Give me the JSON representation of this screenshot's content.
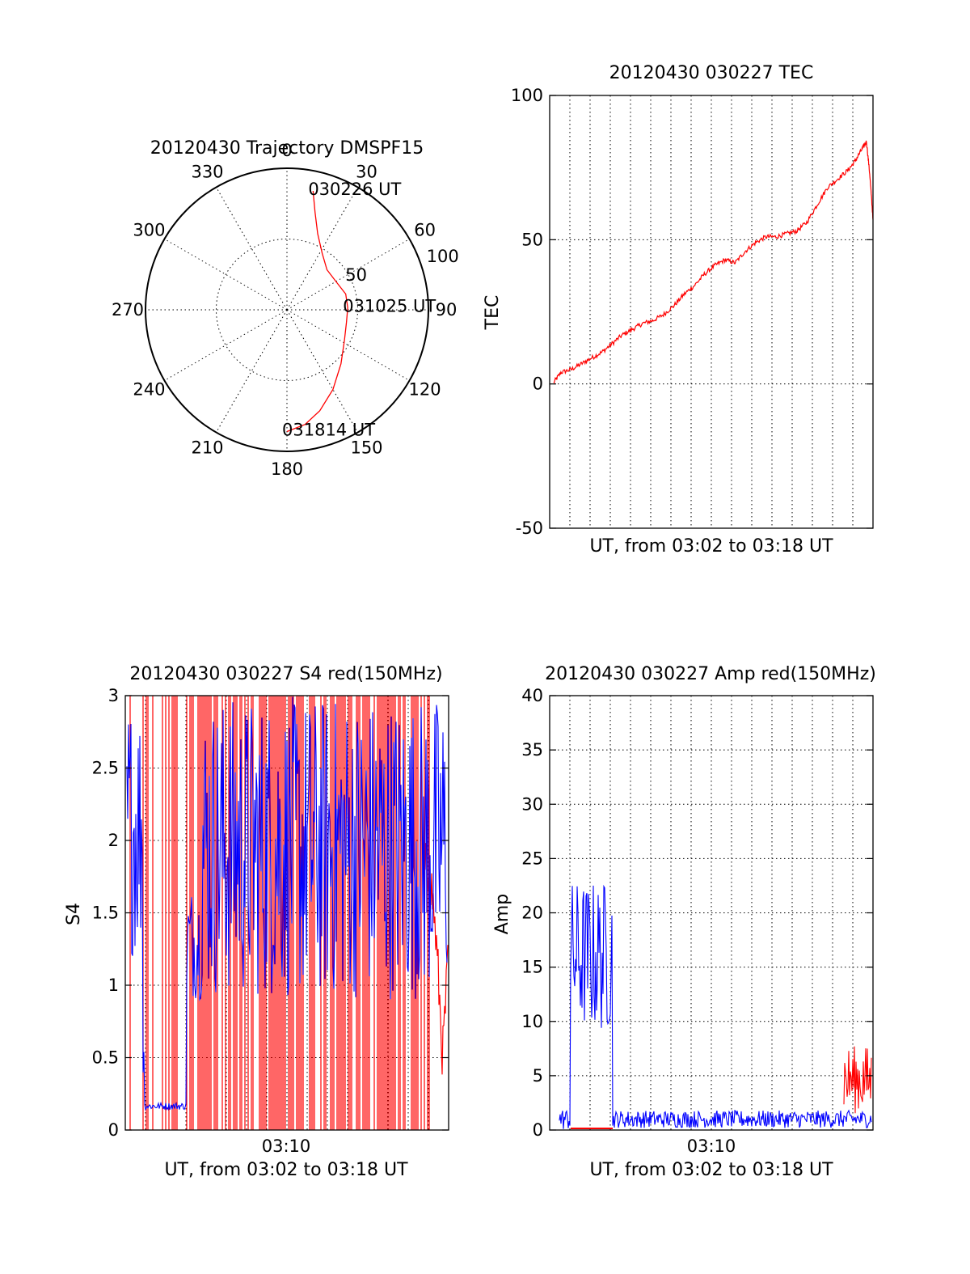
{
  "colors": {
    "red": "#ff0000",
    "blue": "#0000ff",
    "axis": "#000000"
  },
  "chart_data": [
    {
      "id": "trajectory",
      "type": "polar",
      "title": "20120430 Trajectory DMSPF15",
      "azimuth_labels": [
        "0",
        "30",
        "60",
        "90",
        "120",
        "150",
        "180",
        "210",
        "240",
        "270",
        "300",
        "330"
      ],
      "radius_labels": [
        "50",
        "100"
      ],
      "rlim": [
        0,
        100
      ],
      "grid": true,
      "series": [
        {
          "color": "#ff0000",
          "points": [
            {
              "az": 12.4,
              "r": 86
            },
            {
              "az": 16,
              "r": 72
            },
            {
              "az": 22,
              "r": 58
            },
            {
              "az": 32,
              "r": 47
            },
            {
              "az": 45,
              "r": 40
            },
            {
              "az": 60,
              "r": 40
            },
            {
              "az": 75,
              "r": 43
            },
            {
              "az": 88,
              "r": 43
            },
            {
              "az": 102,
              "r": 43
            },
            {
              "az": 118,
              "r": 46
            },
            {
              "az": 135,
              "r": 54
            },
            {
              "az": 150,
              "r": 65
            },
            {
              "az": 162,
              "r": 75
            },
            {
              "az": 171,
              "r": 82
            },
            {
              "az": 180,
              "r": 86
            }
          ]
        }
      ],
      "annotations": [
        {
          "text": "030226 UT",
          "az": 12.4,
          "r": 86
        },
        {
          "text": "031025 UT",
          "az": 88,
          "r": 43
        },
        {
          "text": "031814 UT",
          "az": 180,
          "r": 86
        }
      ]
    },
    {
      "id": "tec",
      "type": "line",
      "title": "20120430 030227 TEC",
      "xlabel": "UT, from 03:02 to 03:18 UT",
      "ylabel": "TEC",
      "xlim": [
        "03:02:27",
        "03:18:14"
      ],
      "ylim": [
        -50,
        100
      ],
      "yticks": [
        "100",
        "50",
        "0",
        "-50"
      ],
      "xtick_labels": [],
      "grid": true,
      "series": [
        {
          "color": "#ff0000",
          "x": [
            "03:02:39",
            "03:03:00",
            "03:03:30",
            "03:04:00",
            "03:04:30",
            "03:05:00",
            "03:05:30",
            "03:06:00",
            "03:06:30",
            "03:07:00",
            "03:07:30",
            "03:08:00",
            "03:08:30",
            "03:09:00",
            "03:09:30",
            "03:10:00",
            "03:10:30",
            "03:11:00",
            "03:11:30",
            "03:12:00",
            "03:12:30",
            "03:13:00",
            "03:13:30",
            "03:14:00",
            "03:14:30",
            "03:15:00",
            "03:15:30",
            "03:16:00",
            "03:16:30",
            "03:17:00",
            "03:17:20",
            "03:17:40",
            "03:17:55",
            "03:18:05",
            "03:18:14"
          ],
          "values": [
            0.5,
            4,
            5,
            7,
            9,
            11,
            14,
            17,
            19,
            21,
            22,
            24,
            27,
            31,
            34,
            38,
            41,
            43,
            42,
            46,
            49,
            51,
            51,
            52,
            53,
            56,
            62,
            68,
            71,
            74,
            77,
            81,
            84,
            72,
            57
          ]
        }
      ]
    },
    {
      "id": "s4",
      "type": "line",
      "title": "20120430 030227 S4 red(150MHz)",
      "xlabel": "UT, from 03:02 to 03:18 UT",
      "ylabel": "S4",
      "xlim": [
        "03:02:27",
        "03:18:14"
      ],
      "ylim": [
        0,
        3
      ],
      "yticks": [
        "0",
        "0.5",
        "1",
        "1.5",
        "2",
        "2.5",
        "3"
      ],
      "xtick_labels": [
        "03:10"
      ],
      "grid": true,
      "series": [
        {
          "color": "#ff0000",
          "values_range": "spikes spanning 0 to 3 nearly everywhere; settles 0.1-1.6 after 03:17"
        },
        {
          "color": "#0000ff",
          "values_range": "1.0-3.0 near start, flat ~0.16 from 03:03 to 03:05, then 0.8-3.0 dense oscillation"
        }
      ]
    },
    {
      "id": "amp",
      "type": "line",
      "title": "20120430 030227 Amp red(150MHz)",
      "xlabel": "UT, from 03:02 to 03:18 UT",
      "ylabel": "Amp",
      "xlim": [
        "03:02:27",
        "03:18:14"
      ],
      "ylim": [
        0,
        40
      ],
      "yticks": [
        "0",
        "5",
        "10",
        "15",
        "20",
        "25",
        "30",
        "35",
        "40"
      ],
      "xtick_labels": [
        "03:10"
      ],
      "grid": true,
      "series": [
        {
          "color": "#0000ff",
          "segments": [
            {
              "x": [
                "03:02:27",
                "03:03:00"
              ],
              "range": [
                0,
                2
              ]
            },
            {
              "x": [
                "03:03:00",
                "03:05:00"
              ],
              "range": [
                7,
                25
              ]
            },
            {
              "x": [
                "03:05:00",
                "03:18:14"
              ],
              "range": [
                0,
                2
              ]
            }
          ]
        },
        {
          "color": "#ff0000",
          "segments": [
            {
              "x": [
                "03:03:00",
                "03:05:00"
              ],
              "range": [
                0,
                0.3
              ]
            },
            {
              "x": [
                "03:16:45",
                "03:18:14"
              ],
              "range": [
                1,
                8
              ]
            }
          ]
        }
      ]
    }
  ]
}
